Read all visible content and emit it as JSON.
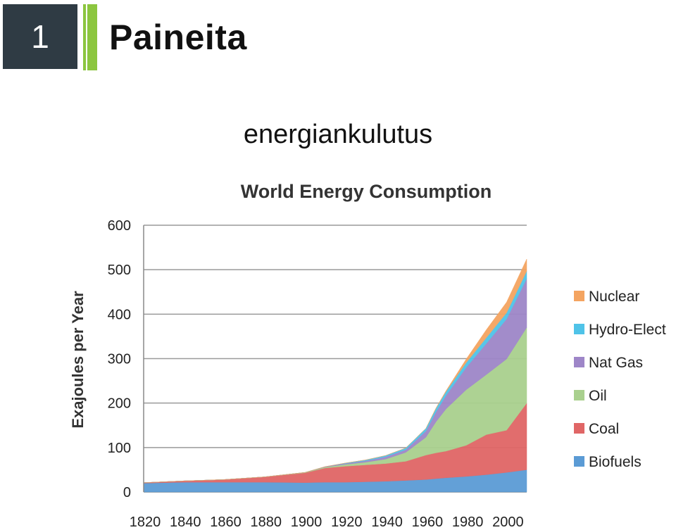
{
  "slide": {
    "number": "1",
    "title": "Paineita",
    "subtitle": "energiankulutus",
    "colors": {
      "number_box": "#2f3b44",
      "accent": "#8cc63f"
    }
  },
  "chart_data": {
    "type": "area",
    "stacked": true,
    "title": "World Energy Consumption",
    "xlabel": "",
    "ylabel": "Exajoules per Year",
    "xlim": [
      1820,
      2010
    ],
    "ylim": [
      0,
      600
    ],
    "x_ticks": [
      1820,
      1840,
      1860,
      1880,
      1900,
      1920,
      1940,
      1960,
      1980,
      2000
    ],
    "y_ticks": [
      0,
      100,
      200,
      300,
      400,
      500,
      600
    ],
    "grid": "horizontal",
    "legend_position": "right",
    "x": [
      1820,
      1840,
      1860,
      1880,
      1900,
      1910,
      1920,
      1930,
      1940,
      1950,
      1960,
      1965,
      1970,
      1980,
      1990,
      2000,
      2010
    ],
    "series": [
      {
        "name": "Biofuels",
        "color": "#5b9bd5",
        "values": [
          20,
          22,
          22,
          22,
          21,
          22,
          22,
          23,
          24,
          26,
          28,
          30,
          32,
          35,
          39,
          44,
          50
        ]
      },
      {
        "name": "Coal",
        "color": "#e06666",
        "values": [
          1,
          3,
          6,
          12,
          22,
          32,
          36,
          38,
          40,
          43,
          55,
          58,
          60,
          70,
          90,
          95,
          150
        ]
      },
      {
        "name": "Oil",
        "color": "#a9d08e",
        "values": [
          0,
          0,
          0,
          0,
          1,
          2,
          4,
          6,
          10,
          20,
          40,
          70,
          95,
          125,
          135,
          160,
          170
        ]
      },
      {
        "name": "Nat Gas",
        "color": "#9e86c8",
        "values": [
          0,
          0,
          0,
          0,
          0,
          1,
          2,
          3,
          5,
          6,
          14,
          22,
          30,
          50,
          70,
          90,
          110
        ]
      },
      {
        "name": "Hydro-Elect",
        "color": "#4fc3e8",
        "values": [
          0,
          0,
          0,
          0,
          0,
          0,
          1,
          2,
          3,
          4,
          6,
          8,
          9,
          11,
          13,
          14,
          17
        ]
      },
      {
        "name": "Nuclear",
        "color": "#f4a460",
        "values": [
          0,
          0,
          0,
          0,
          0,
          0,
          0,
          0,
          0,
          0,
          0,
          1,
          2,
          8,
          18,
          24,
          27
        ]
      }
    ]
  }
}
